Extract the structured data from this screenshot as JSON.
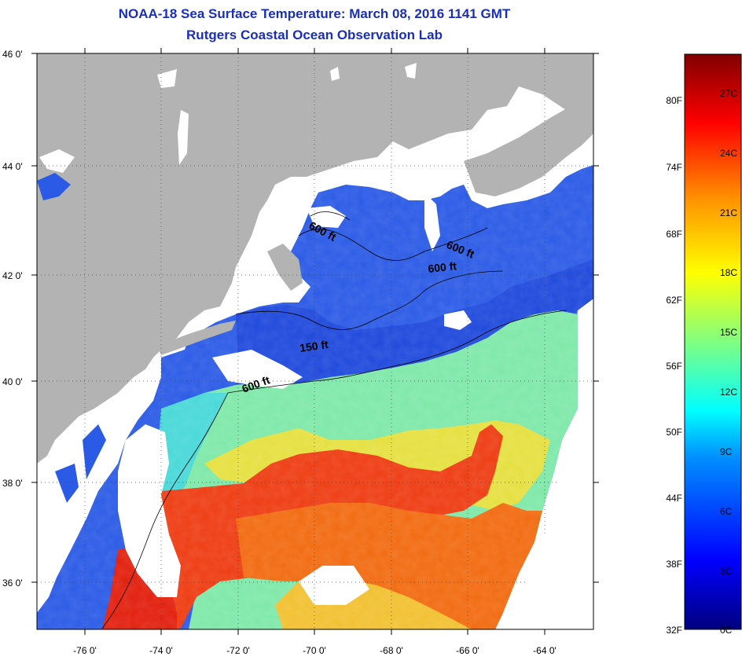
{
  "title": {
    "line1": "NOAA-18 Sea Surface Temperature:  March 08, 2016 1141 GMT",
    "line2": "Rutgers Coastal Ocean Observation Lab"
  },
  "map": {
    "lat_labels": [
      "46 0'",
      "44 0'",
      "42 0'",
      "40 0'",
      "38 0'",
      "36 0'"
    ],
    "lon_labels": [
      "-76 0'",
      "-74 0'",
      "-72 0'",
      "-70 0'",
      "-68 0'",
      "-66 0'",
      "-64 0'"
    ],
    "contour_labels": [
      "600 ft",
      "600 ft",
      "600 ft",
      "150 ft",
      "600 ft"
    ],
    "colors": {
      "land": "#b3b3b3",
      "cloud": "#ffffff",
      "cold_water": "#2050e0",
      "warm_water": "#ee3a10",
      "mid_water": "#60e8c0"
    }
  },
  "colorbar": {
    "f_labels": [
      "80F",
      "74F",
      "68F",
      "62F",
      "56F",
      "50F",
      "44F",
      "38F",
      "32F"
    ],
    "c_labels": [
      "27C",
      "24C",
      "21C",
      "18C",
      "15C",
      "12C",
      "9C",
      "6C",
      "3C",
      "0C"
    ]
  }
}
